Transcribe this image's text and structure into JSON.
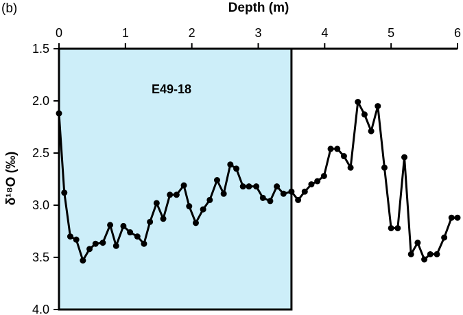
{
  "panel_label": "(b)",
  "chart_data": {
    "type": "line",
    "xlabel": "Depth (m)",
    "ylabel": "δ¹⁸O (‰)",
    "xlim": [
      0,
      6
    ],
    "ylim": [
      1.5,
      4.0
    ],
    "y_inverted": true,
    "x_axis_position": "top",
    "x_ticks": [
      0,
      1,
      2,
      3,
      4,
      5,
      6
    ],
    "x_tick_labels": [
      "0",
      "1",
      "2",
      "3",
      "4",
      "5",
      "6"
    ],
    "y_ticks": [
      1.5,
      2.0,
      2.5,
      3.0,
      3.5,
      4.0
    ],
    "y_tick_labels": [
      "1.5",
      "2.0",
      "2.5",
      "3.0",
      "3.5",
      "4.0"
    ],
    "grid": false,
    "legend": "none",
    "highlight_region": {
      "label": "E49-18",
      "x_range": [
        0,
        3.5
      ],
      "color": "#cdeef9"
    },
    "series": [
      {
        "color": "#000000",
        "x": [
          0.0,
          0.08,
          0.17,
          0.26,
          0.36,
          0.46,
          0.55,
          0.66,
          0.77,
          0.86,
          0.97,
          1.07,
          1.18,
          1.28,
          1.37,
          1.47,
          1.57,
          1.67,
          1.77,
          1.88,
          1.96,
          2.06,
          2.17,
          2.27,
          2.38,
          2.48,
          2.58,
          2.67,
          2.77,
          2.86,
          2.97,
          3.07,
          3.18,
          3.28,
          3.38,
          3.5,
          3.6,
          3.7,
          3.8,
          3.89,
          3.99,
          4.09,
          4.19,
          4.29,
          4.39,
          4.5,
          4.6,
          4.7,
          4.8,
          4.9,
          5.0,
          5.1,
          5.2,
          5.3,
          5.4,
          5.5,
          5.59,
          5.69,
          5.8,
          5.91,
          6.0
        ],
        "y": [
          2.12,
          2.88,
          3.3,
          3.33,
          3.53,
          3.42,
          3.37,
          3.36,
          3.19,
          3.39,
          3.2,
          3.26,
          3.3,
          3.37,
          3.16,
          2.98,
          3.13,
          2.9,
          2.9,
          2.81,
          3.01,
          3.17,
          3.04,
          2.95,
          2.76,
          2.89,
          2.61,
          2.65,
          2.82,
          2.82,
          2.82,
          2.93,
          2.96,
          2.82,
          2.89,
          2.87,
          2.95,
          2.87,
          2.8,
          2.77,
          2.72,
          2.46,
          2.46,
          2.53,
          2.64,
          2.01,
          2.13,
          2.29,
          2.05,
          2.64,
          3.22,
          3.22,
          2.54,
          3.47,
          3.36,
          3.52,
          3.47,
          3.47,
          3.31,
          3.12,
          3.12
        ]
      }
    ]
  }
}
